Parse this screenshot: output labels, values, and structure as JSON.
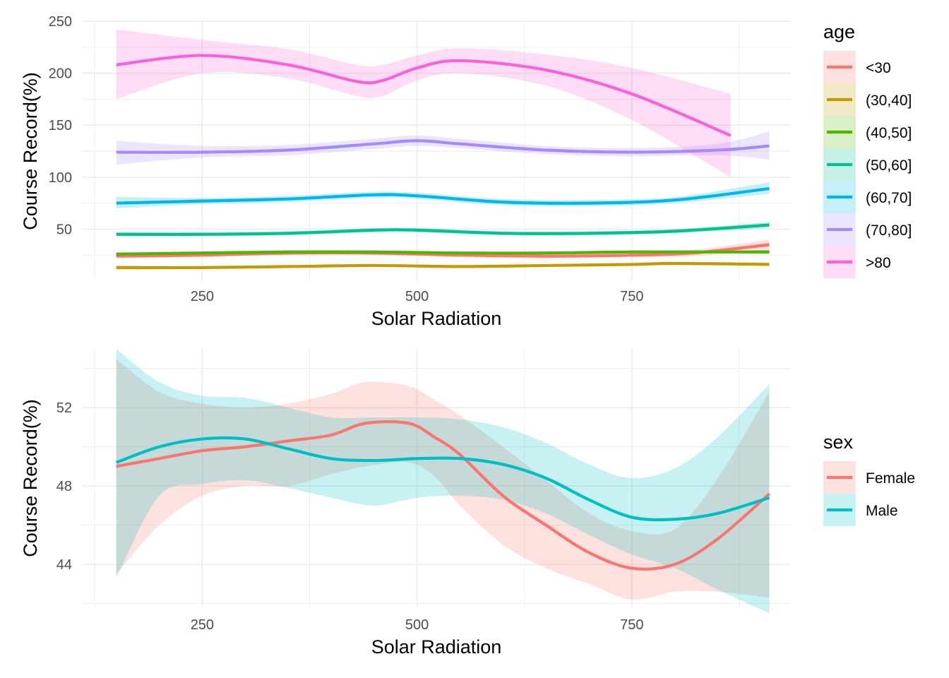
{
  "chart_data": [
    {
      "type": "line",
      "xlabel": "Solar Radiation",
      "ylabel": "Course Record(%)",
      "xlim": [
        110,
        935
      ],
      "ylim": [
        0,
        250
      ],
      "xticks": [
        250,
        500,
        750
      ],
      "yticks": [
        50,
        100,
        150,
        200,
        250
      ],
      "grid": true,
      "legend_title": "age",
      "legend_position": "right",
      "series": [
        {
          "name": "<30",
          "color": "#F8766D",
          "x": [
            150,
            250,
            350,
            450,
            550,
            650,
            750,
            820,
            910
          ],
          "y": [
            24,
            25,
            27,
            27,
            25,
            24,
            25,
            27,
            35
          ],
          "lo": [
            22,
            23,
            25,
            25,
            23,
            22,
            23,
            24,
            30
          ],
          "hi": [
            27,
            27,
            29,
            29,
            27,
            26,
            27,
            30,
            40
          ]
        },
        {
          "name": "(30,40]",
          "color": "#C49A00",
          "x": [
            150,
            250,
            350,
            450,
            550,
            650,
            750,
            800,
            910
          ],
          "y": [
            13,
            13,
            14,
            15,
            14,
            15,
            16,
            17,
            16
          ],
          "lo": [
            11,
            12,
            13,
            14,
            13,
            14,
            15,
            16,
            15
          ],
          "hi": [
            15,
            14,
            15,
            16,
            15,
            16,
            17,
            18,
            18
          ]
        },
        {
          "name": "(40,50]",
          "color": "#53B400",
          "x": [
            150,
            250,
            350,
            450,
            550,
            650,
            750,
            850,
            910
          ],
          "y": [
            26,
            27,
            28,
            28,
            27,
            27,
            28,
            28,
            28
          ],
          "lo": [
            25,
            26,
            27,
            27,
            26,
            26,
            27,
            27,
            26
          ],
          "hi": [
            27,
            28,
            29,
            29,
            28,
            28,
            29,
            29,
            30
          ]
        },
        {
          "name": "(50,60]",
          "color": "#00C094",
          "x": [
            150,
            250,
            350,
            450,
            500,
            600,
            700,
            800,
            910
          ],
          "y": [
            45,
            45,
            46,
            49,
            49,
            46,
            46,
            48,
            54
          ],
          "lo": [
            43,
            43,
            44,
            47,
            47,
            44,
            44,
            46,
            51
          ],
          "hi": [
            47,
            47,
            48,
            51,
            51,
            48,
            48,
            50,
            57
          ]
        },
        {
          "name": "(60,70]",
          "color": "#00B6EB",
          "x": [
            150,
            250,
            350,
            450,
            500,
            600,
            700,
            800,
            910
          ],
          "y": [
            75,
            77,
            79,
            83,
            82,
            76,
            75,
            78,
            89
          ],
          "lo": [
            70,
            74,
            76,
            80,
            79,
            73,
            72,
            75,
            84
          ],
          "hi": [
            81,
            80,
            82,
            86,
            85,
            79,
            78,
            81,
            95
          ]
        },
        {
          "name": "(70,80]",
          "color": "#A58AFF",
          "x": [
            150,
            250,
            350,
            450,
            500,
            550,
            650,
            750,
            850,
            910
          ],
          "y": [
            124,
            124,
            126,
            132,
            135,
            132,
            126,
            124,
            126,
            130
          ],
          "lo": [
            112,
            119,
            121,
            127,
            130,
            128,
            122,
            120,
            121,
            117
          ],
          "hi": [
            135,
            130,
            131,
            137,
            140,
            137,
            130,
            128,
            132,
            144
          ]
        },
        {
          "name": ">80",
          "color": "#FB61D7",
          "x": [
            150,
            250,
            350,
            430,
            460,
            500,
            550,
            650,
            750,
            865
          ],
          "y": [
            208,
            217,
            208,
            192,
            193,
            205,
            212,
            203,
            180,
            140
          ],
          "lo": [
            175,
            200,
            195,
            178,
            178,
            193,
            200,
            188,
            155,
            100
          ],
          "hi": [
            242,
            232,
            223,
            208,
            208,
            217,
            224,
            218,
            205,
            180
          ]
        }
      ]
    },
    {
      "type": "line",
      "xlabel": "Solar Radiation",
      "ylabel": "Course Record(%)",
      "xlim": [
        110,
        935
      ],
      "ylim": [
        41.8,
        55
      ],
      "xticks": [
        250,
        500,
        750
      ],
      "yticks": [
        44,
        48,
        52
      ],
      "grid": true,
      "legend_title": "sex",
      "legend_position": "right",
      "series": [
        {
          "name": "Female",
          "color": "#F8766D",
          "x": [
            150,
            200,
            250,
            300,
            350,
            400,
            440,
            490,
            520,
            550,
            600,
            650,
            700,
            750,
            800,
            850,
            910
          ],
          "y": [
            49.0,
            49.4,
            49.8,
            50.0,
            50.3,
            50.6,
            51.2,
            51.2,
            50.5,
            49.6,
            47.5,
            46.0,
            44.6,
            43.8,
            44.0,
            45.3,
            47.6
          ],
          "lo": [
            43.5,
            46.0,
            47.5,
            48.0,
            48.0,
            48.6,
            49.0,
            49.2,
            48.5,
            47.0,
            45.0,
            43.8,
            43.0,
            42.2,
            42.6,
            42.6,
            42.3
          ],
          "hi": [
            54.5,
            52.8,
            52.2,
            52.0,
            52.2,
            52.7,
            53.3,
            53.1,
            52.4,
            51.6,
            50.0,
            48.3,
            46.6,
            45.7,
            45.8,
            48.4,
            52.8
          ]
        },
        {
          "name": "Male",
          "color": "#00BFC4",
          "x": [
            150,
            200,
            250,
            300,
            350,
            400,
            450,
            500,
            550,
            600,
            650,
            700,
            750,
            800,
            850,
            910
          ],
          "y": [
            49.2,
            50.0,
            50.4,
            50.4,
            49.9,
            49.4,
            49.3,
            49.4,
            49.4,
            49.1,
            48.4,
            47.3,
            46.4,
            46.3,
            46.6,
            47.4
          ],
          "lo": [
            43.3,
            47.5,
            48.1,
            48.3,
            47.9,
            47.4,
            47.0,
            47.4,
            47.5,
            47.3,
            46.6,
            45.5,
            44.5,
            43.8,
            42.7,
            41.5
          ],
          "hi": [
            55.0,
            53.3,
            52.6,
            52.5,
            52.0,
            51.5,
            51.5,
            51.5,
            51.4,
            51.0,
            50.2,
            49.1,
            48.4,
            48.9,
            50.5,
            53.2
          ]
        }
      ]
    }
  ]
}
